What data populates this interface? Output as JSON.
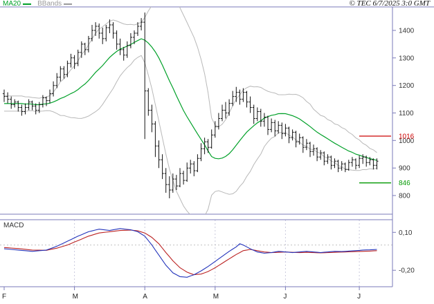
{
  "header": {
    "legend": [
      {
        "label": "MA20",
        "color": "#00a028"
      },
      {
        "label": "BBands",
        "color": "#9a9a9a"
      }
    ],
    "copyright": "© TEC 6/7/2025 3:0 GMT"
  },
  "colors": {
    "frame": "#7a7ab8",
    "candle": "#111111",
    "ma20": "#00a028",
    "bbands": "#b8b8b8",
    "macd_line": "#2233bb",
    "macd_signal": "#bb2222",
    "grid_dotted": "#c9c9dc"
  },
  "chart_data": {
    "type": "ohlc",
    "title": "",
    "price_panel": {
      "y_ticks": [
        1400,
        1300,
        1200,
        1100,
        1000,
        900,
        800
      ],
      "ylim": [
        732,
        1485
      ],
      "levels": [
        {
          "label": "1016",
          "value": 1016,
          "color": "#cc0000"
        },
        {
          "label": "846",
          "value": 846,
          "color": "#009900"
        }
      ],
      "overlays": [
        {
          "name": "MA20",
          "period": 20,
          "color": "#00a028"
        },
        {
          "name": "BBands",
          "period": 20,
          "color": "#b8b8b8"
        }
      ],
      "candles": [
        [
          1170,
          1185,
          1140,
          1160
        ],
        [
          1160,
          1175,
          1135,
          1150
        ],
        [
          1150,
          1160,
          1115,
          1130
        ],
        [
          1130,
          1150,
          1120,
          1140
        ],
        [
          1140,
          1145,
          1105,
          1120
        ],
        [
          1120,
          1130,
          1090,
          1105
        ],
        [
          1105,
          1135,
          1095,
          1120
        ],
        [
          1120,
          1150,
          1110,
          1140
        ],
        [
          1140,
          1145,
          1110,
          1125
        ],
        [
          1125,
          1135,
          1095,
          1110
        ],
        [
          1110,
          1140,
          1100,
          1130
        ],
        [
          1130,
          1165,
          1120,
          1155
        ],
        [
          1155,
          1160,
          1125,
          1145
        ],
        [
          1145,
          1185,
          1135,
          1170
        ],
        [
          1170,
          1215,
          1160,
          1200
        ],
        [
          1200,
          1245,
          1190,
          1230
        ],
        [
          1230,
          1270,
          1215,
          1260
        ],
        [
          1260,
          1270,
          1225,
          1240
        ],
        [
          1240,
          1290,
          1230,
          1280
        ],
        [
          1280,
          1315,
          1265,
          1300
        ],
        [
          1300,
          1310,
          1260,
          1280
        ],
        [
          1280,
          1330,
          1270,
          1320
        ],
        [
          1320,
          1360,
          1300,
          1350
        ],
        [
          1350,
          1355,
          1310,
          1330
        ],
        [
          1330,
          1380,
          1320,
          1370
        ],
        [
          1370,
          1420,
          1360,
          1400
        ],
        [
          1400,
          1430,
          1380,
          1415
        ],
        [
          1415,
          1425,
          1370,
          1390
        ],
        [
          1390,
          1410,
          1350,
          1370
        ],
        [
          1370,
          1420,
          1360,
          1410
        ],
        [
          1410,
          1440,
          1390,
          1420
        ],
        [
          1420,
          1430,
          1370,
          1390
        ],
        [
          1390,
          1400,
          1330,
          1350
        ],
        [
          1350,
          1370,
          1310,
          1330
        ],
        [
          1330,
          1340,
          1290,
          1310
        ],
        [
          1310,
          1360,
          1300,
          1345
        ],
        [
          1345,
          1390,
          1335,
          1375
        ],
        [
          1375,
          1400,
          1350,
          1390
        ],
        [
          1390,
          1430,
          1380,
          1415
        ],
        [
          1415,
          1445,
          1400,
          1430
        ],
        [
          1430,
          1465,
          1005,
          1180
        ],
        [
          1180,
          1190,
          1090,
          1110
        ],
        [
          1110,
          1130,
          1030,
          1060
        ],
        [
          1060,
          1070,
          940,
          980
        ],
        [
          980,
          1000,
          900,
          930
        ],
        [
          930,
          950,
          860,
          880
        ],
        [
          880,
          900,
          810,
          840
        ],
        [
          840,
          870,
          790,
          820
        ],
        [
          820,
          880,
          810,
          860
        ],
        [
          860,
          875,
          820,
          835
        ],
        [
          835,
          900,
          830,
          880
        ],
        [
          880,
          890,
          840,
          855
        ],
        [
          855,
          920,
          850,
          900
        ],
        [
          900,
          930,
          880,
          915
        ],
        [
          915,
          925,
          870,
          890
        ],
        [
          890,
          950,
          885,
          935
        ],
        [
          935,
          990,
          925,
          970
        ],
        [
          970,
          1010,
          950,
          995
        ],
        [
          995,
          1005,
          955,
          975
        ],
        [
          975,
          1040,
          970,
          1020
        ],
        [
          1020,
          1070,
          1010,
          1050
        ],
        [
          1050,
          1100,
          1040,
          1080
        ],
        [
          1080,
          1130,
          1070,
          1110
        ],
        [
          1110,
          1140,
          1080,
          1100
        ],
        [
          1100,
          1150,
          1090,
          1135
        ],
        [
          1135,
          1180,
          1125,
          1160
        ],
        [
          1160,
          1195,
          1140,
          1175
        ],
        [
          1175,
          1185,
          1130,
          1150
        ],
        [
          1150,
          1190,
          1140,
          1175
        ],
        [
          1175,
          1180,
          1120,
          1140
        ],
        [
          1140,
          1160,
          1100,
          1120
        ],
        [
          1120,
          1130,
          1060,
          1080
        ],
        [
          1080,
          1120,
          1070,
          1105
        ],
        [
          1105,
          1115,
          1050,
          1070
        ],
        [
          1070,
          1100,
          1050,
          1085
        ],
        [
          1085,
          1090,
          1020,
          1040
        ],
        [
          1040,
          1080,
          1030,
          1065
        ],
        [
          1065,
          1075,
          1015,
          1035
        ],
        [
          1035,
          1070,
          1025,
          1055
        ],
        [
          1055,
          1065,
          1005,
          1025
        ],
        [
          1025,
          1060,
          1015,
          1045
        ],
        [
          1045,
          1050,
          990,
          1010
        ],
        [
          1010,
          1040,
          1000,
          1030
        ],
        [
          1030,
          1035,
          975,
          995
        ],
        [
          995,
          1025,
          985,
          1010
        ],
        [
          1010,
          1015,
          955,
          975
        ],
        [
          975,
          1005,
          965,
          990
        ],
        [
          990,
          995,
          940,
          960
        ],
        [
          960,
          985,
          945,
          970
        ],
        [
          970,
          975,
          925,
          940
        ],
        [
          940,
          965,
          930,
          955
        ],
        [
          955,
          960,
          910,
          925
        ],
        [
          925,
          950,
          915,
          940
        ],
        [
          940,
          945,
          895,
          910
        ],
        [
          910,
          935,
          900,
          925
        ],
        [
          925,
          930,
          885,
          900
        ],
        [
          900,
          925,
          890,
          915
        ],
        [
          915,
          920,
          885,
          895
        ],
        [
          895,
          930,
          890,
          920
        ],
        [
          920,
          940,
          905,
          930
        ],
        [
          930,
          935,
          895,
          910
        ],
        [
          910,
          945,
          900,
          935
        ],
        [
          935,
          950,
          915,
          940
        ],
        [
          940,
          945,
          905,
          920
        ],
        [
          920,
          940,
          910,
          930
        ],
        [
          930,
          935,
          895,
          910
        ],
        [
          910,
          935,
          895,
          925
        ]
      ]
    },
    "macd_panel": {
      "label": "MACD",
      "ylim": [
        -0.33,
        0.2
      ],
      "y_ticks": [
        {
          "label": "0,10",
          "value": 0.1
        },
        {
          "label": "-0,20",
          "value": -0.2
        }
      ],
      "macd_keypoints": [
        [
          0,
          -0.03
        ],
        [
          4,
          -0.04
        ],
        [
          8,
          -0.05
        ],
        [
          12,
          -0.04
        ],
        [
          15,
          -0.01
        ],
        [
          18,
          0.03
        ],
        [
          21,
          0.07
        ],
        [
          24,
          0.105
        ],
        [
          27,
          0.125
        ],
        [
          30,
          0.115
        ],
        [
          33,
          0.13
        ],
        [
          36,
          0.12
        ],
        [
          38,
          0.105
        ],
        [
          40,
          0.07
        ],
        [
          42,
          0.0
        ],
        [
          44,
          -0.08
        ],
        [
          46,
          -0.16
        ],
        [
          48,
          -0.22
        ],
        [
          50,
          -0.25
        ],
        [
          52,
          -0.255
        ],
        [
          54,
          -0.235
        ],
        [
          56,
          -0.205
        ],
        [
          58,
          -0.17
        ],
        [
          60,
          -0.13
        ],
        [
          62,
          -0.09
        ],
        [
          64,
          -0.05
        ],
        [
          66,
          -0.015
        ],
        [
          67,
          0.01
        ],
        [
          68,
          0.0
        ],
        [
          70,
          -0.03
        ],
        [
          72,
          -0.055
        ],
        [
          74,
          -0.065
        ],
        [
          76,
          -0.06
        ],
        [
          78,
          -0.05
        ],
        [
          80,
          -0.055
        ],
        [
          82,
          -0.06
        ],
        [
          84,
          -0.055
        ],
        [
          86,
          -0.05
        ],
        [
          88,
          -0.055
        ],
        [
          90,
          -0.06
        ],
        [
          92,
          -0.055
        ],
        [
          94,
          -0.05
        ],
        [
          96,
          -0.052
        ],
        [
          98,
          -0.048
        ],
        [
          100,
          -0.045
        ],
        [
          102,
          -0.04
        ],
        [
          104,
          -0.038
        ],
        [
          106,
          -0.035
        ]
      ],
      "signal_keypoints": [
        [
          0,
          -0.02
        ],
        [
          4,
          -0.028
        ],
        [
          8,
          -0.04
        ],
        [
          12,
          -0.042
        ],
        [
          15,
          -0.025
        ],
        [
          18,
          0.0
        ],
        [
          21,
          0.035
        ],
        [
          24,
          0.07
        ],
        [
          27,
          0.095
        ],
        [
          30,
          0.105
        ],
        [
          33,
          0.115
        ],
        [
          36,
          0.118
        ],
        [
          38,
          0.112
        ],
        [
          40,
          0.095
        ],
        [
          42,
          0.06
        ],
        [
          44,
          0.01
        ],
        [
          46,
          -0.06
        ],
        [
          48,
          -0.125
        ],
        [
          50,
          -0.18
        ],
        [
          52,
          -0.215
        ],
        [
          54,
          -0.235
        ],
        [
          56,
          -0.23
        ],
        [
          58,
          -0.21
        ],
        [
          60,
          -0.18
        ],
        [
          62,
          -0.145
        ],
        [
          64,
          -0.11
        ],
        [
          66,
          -0.075
        ],
        [
          68,
          -0.045
        ],
        [
          70,
          -0.035
        ],
        [
          72,
          -0.045
        ],
        [
          74,
          -0.055
        ],
        [
          76,
          -0.06
        ],
        [
          78,
          -0.058
        ],
        [
          80,
          -0.055
        ],
        [
          82,
          -0.058
        ],
        [
          84,
          -0.06
        ],
        [
          86,
          -0.058
        ],
        [
          88,
          -0.06
        ],
        [
          90,
          -0.062
        ],
        [
          92,
          -0.06
        ],
        [
          94,
          -0.058
        ],
        [
          96,
          -0.056
        ],
        [
          98,
          -0.054
        ],
        [
          100,
          -0.052
        ],
        [
          102,
          -0.05
        ],
        [
          104,
          -0.048
        ],
        [
          106,
          -0.045
        ]
      ]
    },
    "x_axis": {
      "month_labels": [
        "F",
        "M",
        "A",
        "M",
        "J",
        "J"
      ],
      "month_start_indices": [
        0,
        20,
        40,
        60,
        80,
        101
      ]
    }
  }
}
